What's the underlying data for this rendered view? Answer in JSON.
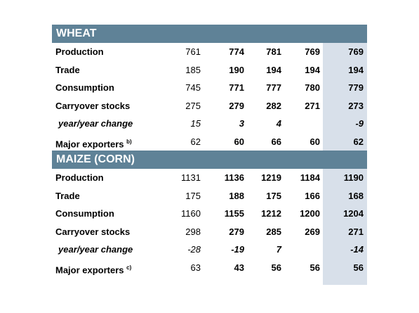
{
  "sections": [
    {
      "title": "WHEAT",
      "rows": [
        {
          "label": "Production",
          "sup": "",
          "italic": false,
          "values": [
            "761",
            "774",
            "781",
            "769",
            "769"
          ]
        },
        {
          "label": "Trade",
          "sup": "",
          "italic": false,
          "values": [
            "185",
            "190",
            "194",
            "194",
            "194"
          ]
        },
        {
          "label": "Consumption",
          "sup": "",
          "italic": false,
          "values": [
            "745",
            "771",
            "777",
            "780",
            "779"
          ]
        },
        {
          "label": "Carryover stocks",
          "sup": "",
          "italic": false,
          "values": [
            "275",
            "279",
            "282",
            "271",
            "273"
          ]
        },
        {
          "label": "year/year change",
          "sup": "",
          "italic": true,
          "values": [
            "15",
            "3",
            "4",
            "",
            "-9"
          ]
        },
        {
          "label": "Major exporters",
          "sup": "b)",
          "italic": false,
          "values": [
            "62",
            "60",
            "66",
            "60",
            "62"
          ]
        }
      ]
    },
    {
      "title": "MAIZE (CORN)",
      "rows": [
        {
          "label": "Production",
          "sup": "",
          "italic": false,
          "values": [
            "1131",
            "1136",
            "1219",
            "1184",
            "1190"
          ]
        },
        {
          "label": "Trade",
          "sup": "",
          "italic": false,
          "values": [
            "175",
            "188",
            "175",
            "166",
            "168"
          ]
        },
        {
          "label": "Consumption",
          "sup": "",
          "italic": false,
          "values": [
            "1160",
            "1155",
            "1212",
            "1200",
            "1204"
          ]
        },
        {
          "label": "Carryover stocks",
          "sup": "",
          "italic": false,
          "values": [
            "298",
            "279",
            "285",
            "269",
            "271"
          ]
        },
        {
          "label": "year/year change",
          "sup": "",
          "italic": true,
          "values": [
            "-28",
            "-19",
            "7",
            "",
            "-14"
          ]
        },
        {
          "label": "Major exporters",
          "sup": "c)",
          "italic": false,
          "values": [
            "63",
            "43",
            "56",
            "56",
            "56"
          ]
        }
      ]
    }
  ],
  "colors": {
    "header_bg": "#5f8297",
    "header_text": "#ffffff",
    "highlight_column": "#d8e0ea"
  }
}
